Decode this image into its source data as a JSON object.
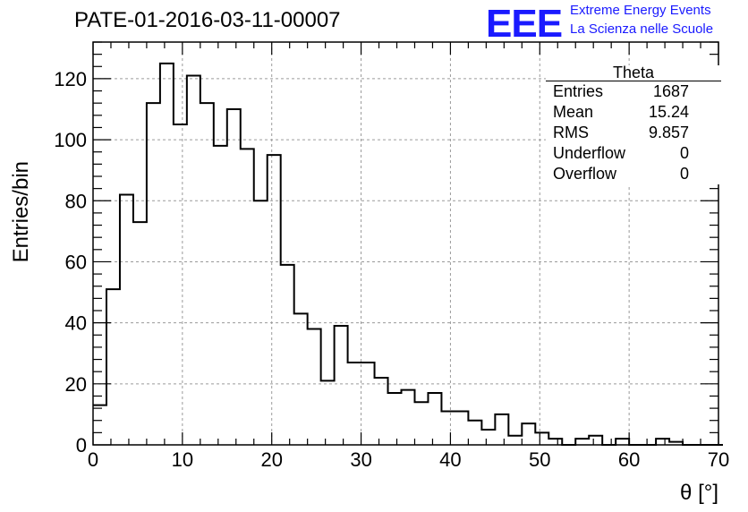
{
  "title": "PATE-01-2016-03-11-00007",
  "logo": {
    "mark": "EEE",
    "line1": "Extreme Energy Events",
    "line2": "La Scienza nelle Scuole"
  },
  "stats": {
    "name": "Theta",
    "rows": [
      {
        "label": "Entries",
        "value": "1687"
      },
      {
        "label": "Mean",
        "value": "15.24"
      },
      {
        "label": "RMS",
        "value": "9.857"
      },
      {
        "label": "Underflow",
        "value": "0"
      },
      {
        "label": "Overflow",
        "value": "0"
      }
    ]
  },
  "chart_data": {
    "type": "histogram",
    "xlabel": "θ [°]",
    "ylabel": "Entries/bin",
    "xlim": [
      0,
      70
    ],
    "ylim": [
      0,
      132
    ],
    "grid": true,
    "xticks": [
      0,
      10,
      20,
      30,
      40,
      50,
      60,
      70
    ],
    "yticks": [
      0,
      20,
      40,
      60,
      80,
      100,
      120
    ],
    "bin_width": 1.5,
    "bin_start": 0,
    "values": [
      13,
      51,
      82,
      73,
      112,
      125,
      105,
      121,
      112,
      98,
      110,
      97,
      80,
      95,
      59,
      43,
      38,
      21,
      39,
      27,
      27,
      22,
      17,
      18,
      14,
      17,
      11,
      11,
      8,
      5,
      10,
      3,
      7,
      4,
      2,
      0,
      2,
      3,
      0,
      2,
      0,
      0,
      2,
      1,
      0,
      0,
      0
    ],
    "line_color": "#000000"
  }
}
